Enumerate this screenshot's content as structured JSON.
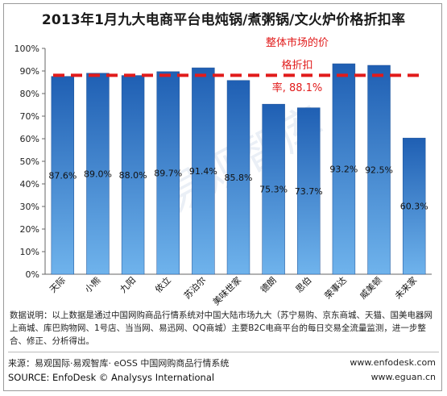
{
  "chart_data": {
    "type": "bar",
    "title": "2013年1月九大电商平台电炖锅/煮粥锅/文火炉价格折扣率",
    "categories": [
      "天际",
      "小熊",
      "九阳",
      "依立",
      "苏泊尔",
      "美味世家",
      "德朗",
      "思伯",
      "荣事达",
      "威美顿",
      "未来家"
    ],
    "values": [
      87.6,
      89.0,
      88.0,
      89.7,
      91.4,
      85.8,
      75.3,
      73.7,
      93.2,
      92.5,
      60.3
    ],
    "value_labels": [
      "87.6%",
      "89.0%",
      "88.0%",
      "89.7%",
      "91.4%",
      "85.8%",
      "75.3%",
      "73.7%",
      "93.2%",
      "92.5%",
      "60.3%"
    ],
    "ylim": [
      0,
      100
    ],
    "yticks": [
      0,
      10,
      20,
      30,
      40,
      50,
      60,
      70,
      80,
      90,
      100
    ],
    "ytick_labels": [
      "0%",
      "10%",
      "20%",
      "30%",
      "40%",
      "50%",
      "60%",
      "70%",
      "80%",
      "90%",
      "100%"
    ],
    "reference_line": {
      "value": 88.1,
      "color": "#e11b1b",
      "style": "dashed"
    },
    "annotation_lines": [
      "整体市场的价",
      "格折扣",
      "率, 88.1%"
    ],
    "watermark": "易观智库",
    "grid": false,
    "bar_color_top": "#1f5fb3",
    "bar_color_bottom": "#6fb3ec"
  },
  "footer": {
    "note": "数据说明：以上数据是通过中国网购商品行情系统对中国大陆市场九大（苏宁易购、京东商城、天猫、国美电器网上商城、库巴购物网、1号店、当当网、易迅网、QQ商城）主要B2C电商平台的每日交易全流量监测，进一步整合、修正、分析得出。",
    "source_cn": "来源：易观国际·易观智库· eOSS 中国网购商品行情系统",
    "source_en": "SOURCE: EnfoDesk © Analysys International",
    "site1": "www.enfodesk.com",
    "site2": "www.eguan.cn"
  }
}
